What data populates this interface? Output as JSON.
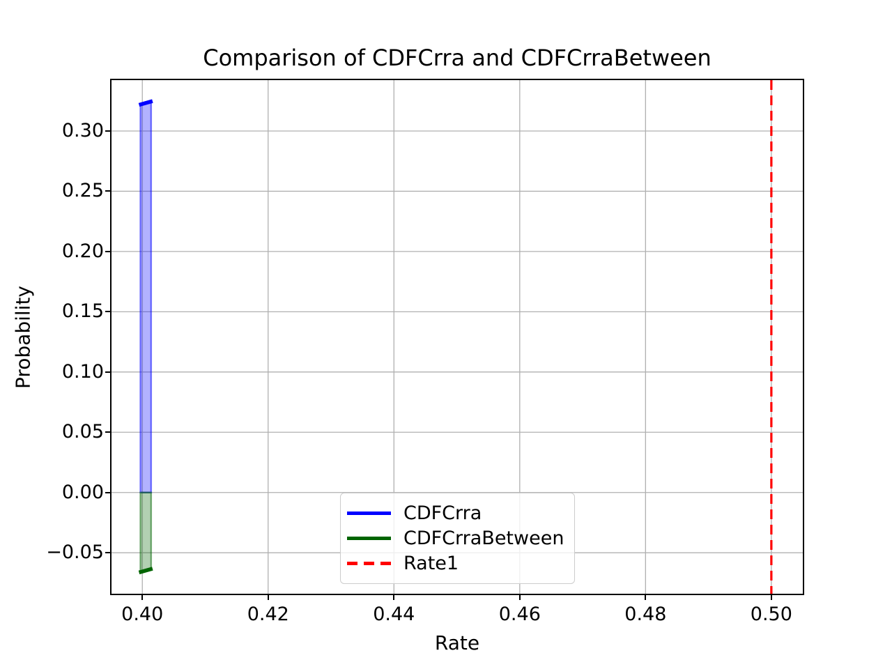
{
  "chart_data": {
    "type": "line",
    "title": "Comparison of CDFCrra and CDFCrraBetween",
    "xlabel": "Rate",
    "ylabel": "Probability",
    "xlim": [
      0.3951,
      0.505
    ],
    "ylim": [
      -0.084,
      0.3422
    ],
    "xticks": [
      0.4,
      0.42,
      0.44,
      0.46,
      0.48,
      0.5
    ],
    "xtick_labels": [
      "0.40",
      "0.42",
      "0.44",
      "0.46",
      "0.48",
      "0.50"
    ],
    "yticks": [
      -0.05,
      0.0,
      0.05,
      0.1,
      0.15,
      0.2,
      0.25,
      0.3
    ],
    "ytick_labels": [
      "−0.05",
      "0.00",
      "0.05",
      "0.10",
      "0.15",
      "0.20",
      "0.25",
      "0.30"
    ],
    "grid": true,
    "grid_color": "#b0b0b0",
    "background": "#ffffff",
    "series": [
      {
        "name": "CDFCrra",
        "kind": "band",
        "color": "#0000ff",
        "fill_alpha": 0.3,
        "edge_alpha": 0.5,
        "x_range": [
          0.3997,
          0.4014
        ],
        "y_base": 0.0,
        "y_top": [
          0.322,
          0.3245
        ]
      },
      {
        "name": "CDFCrraBetween",
        "kind": "band",
        "color": "#006400",
        "fill_alpha": 0.3,
        "edge_alpha": 0.5,
        "x_range": [
          0.3997,
          0.4014
        ],
        "y_base": 0.0,
        "y_top": [
          -0.066,
          -0.0635
        ]
      },
      {
        "name": "Rate1",
        "kind": "vline",
        "color": "#ff0000",
        "linestyle": "dashed",
        "x": 0.5
      }
    ],
    "legend": {
      "position": "lower center",
      "entries": [
        {
          "label": "CDFCrra",
          "color": "#0000ff",
          "linestyle": "solid"
        },
        {
          "label": "CDFCrraBetween",
          "color": "#006400",
          "linestyle": "solid"
        },
        {
          "label": "Rate1",
          "color": "#ff0000",
          "linestyle": "dashed"
        }
      ]
    }
  }
}
